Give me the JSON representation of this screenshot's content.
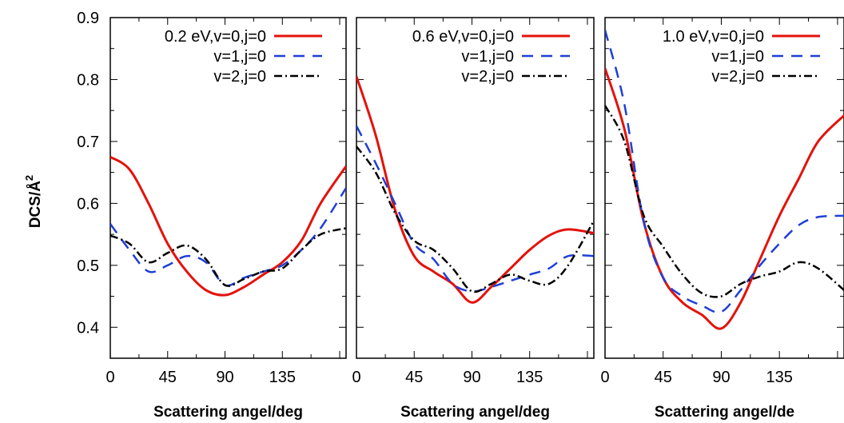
{
  "chart_data": [
    {
      "type": "line",
      "legend_title": "0.2 eV,",
      "xlabel": "Scattering angel/deg",
      "ylabel": "DCS/Å",
      "ylabel_sup": "2",
      "xlim": [
        0,
        185
      ],
      "ylim": [
        0.35,
        0.9
      ],
      "xticks": [
        "0",
        "45",
        "90",
        "135"
      ],
      "yticks": [
        "0.4",
        "0.5",
        "0.6",
        "0.7",
        "0.8",
        "0.9"
      ],
      "legend_position": "top-right",
      "grid": false,
      "series": [
        {
          "name": "v=0,j=0",
          "color": "#e3120b",
          "dash": "solid",
          "x": [
            0,
            15,
            30,
            45,
            60,
            75,
            90,
            105,
            120,
            135,
            150,
            165,
            185
          ],
          "y": [
            0.675,
            0.655,
            0.6,
            0.535,
            0.49,
            0.46,
            0.452,
            0.465,
            0.485,
            0.505,
            0.54,
            0.6,
            0.66
          ]
        },
        {
          "name": "v=1,j=0",
          "color": "#1f3fd6",
          "dash": "dash",
          "x": [
            0,
            15,
            30,
            45,
            60,
            75,
            90,
            105,
            120,
            135,
            150,
            165,
            185
          ],
          "y": [
            0.567,
            0.525,
            0.49,
            0.5,
            0.515,
            0.505,
            0.468,
            0.48,
            0.49,
            0.5,
            0.525,
            0.56,
            0.625
          ]
        },
        {
          "name": "v=2,j=0",
          "color": "#000000",
          "dash": "dashdot",
          "x": [
            0,
            15,
            30,
            45,
            60,
            75,
            90,
            105,
            120,
            135,
            150,
            165,
            185
          ],
          "y": [
            0.548,
            0.535,
            0.505,
            0.52,
            0.532,
            0.51,
            0.468,
            0.478,
            0.49,
            0.495,
            0.525,
            0.55,
            0.56
          ]
        }
      ]
    },
    {
      "type": "line",
      "legend_title": "0.6 eV,",
      "xlabel": "Scattering angel/deg",
      "xlim": [
        0,
        185
      ],
      "ylim": [
        0.35,
        0.9
      ],
      "xticks": [
        "0",
        "45",
        "90",
        "135"
      ],
      "legend_position": "top-right",
      "grid": false,
      "series": [
        {
          "name": "v=0,j=0",
          "color": "#e3120b",
          "dash": "solid",
          "x": [
            0,
            15,
            30,
            45,
            60,
            75,
            90,
            105,
            120,
            135,
            150,
            165,
            185
          ],
          "y": [
            0.805,
            0.71,
            0.59,
            0.515,
            0.49,
            0.47,
            0.44,
            0.465,
            0.495,
            0.525,
            0.548,
            0.558,
            0.552
          ]
        },
        {
          "name": "v=1,j=0",
          "color": "#1f3fd6",
          "dash": "dash",
          "x": [
            0,
            15,
            30,
            45,
            60,
            75,
            90,
            105,
            120,
            135,
            150,
            165,
            185
          ],
          "y": [
            0.725,
            0.665,
            0.6,
            0.535,
            0.51,
            0.47,
            0.458,
            0.465,
            0.475,
            0.485,
            0.495,
            0.515,
            0.515
          ]
        },
        {
          "name": "v=2,j=0",
          "color": "#000000",
          "dash": "dashdot",
          "x": [
            0,
            15,
            30,
            45,
            60,
            75,
            90,
            105,
            120,
            135,
            150,
            165,
            185
          ],
          "y": [
            0.692,
            0.65,
            0.585,
            0.54,
            0.525,
            0.495,
            0.458,
            0.47,
            0.485,
            0.475,
            0.47,
            0.5,
            0.572
          ]
        }
      ]
    },
    {
      "type": "line",
      "legend_title": "1.0 eV,",
      "xlabel": "Scattering angel/de",
      "xlim": [
        0,
        185
      ],
      "ylim": [
        0.35,
        0.9
      ],
      "xticks": [
        "0",
        "45",
        "90",
        "135"
      ],
      "legend_position": "top-right",
      "grid": false,
      "series": [
        {
          "name": "v=0,j=0",
          "color": "#e3120b",
          "dash": "solid",
          "x": [
            0,
            15,
            30,
            45,
            60,
            75,
            90,
            105,
            120,
            135,
            150,
            165,
            185
          ],
          "y": [
            0.818,
            0.72,
            0.57,
            0.48,
            0.44,
            0.42,
            0.398,
            0.44,
            0.51,
            0.58,
            0.64,
            0.7,
            0.742
          ]
        },
        {
          "name": "v=1,j=0",
          "color": "#1f3fd6",
          "dash": "dash",
          "x": [
            0,
            15,
            30,
            45,
            60,
            75,
            90,
            105,
            120,
            135,
            150,
            165,
            185
          ],
          "y": [
            0.88,
            0.76,
            0.57,
            0.48,
            0.45,
            0.435,
            0.425,
            0.46,
            0.5,
            0.535,
            0.565,
            0.578,
            0.58
          ]
        },
        {
          "name": "v=2,j=0",
          "color": "#000000",
          "dash": "dashdot",
          "x": [
            0,
            15,
            30,
            45,
            60,
            75,
            90,
            105,
            120,
            135,
            150,
            165,
            185
          ],
          "y": [
            0.758,
            0.7,
            0.58,
            0.53,
            0.485,
            0.455,
            0.45,
            0.47,
            0.482,
            0.49,
            0.505,
            0.495,
            0.46
          ]
        }
      ]
    }
  ]
}
